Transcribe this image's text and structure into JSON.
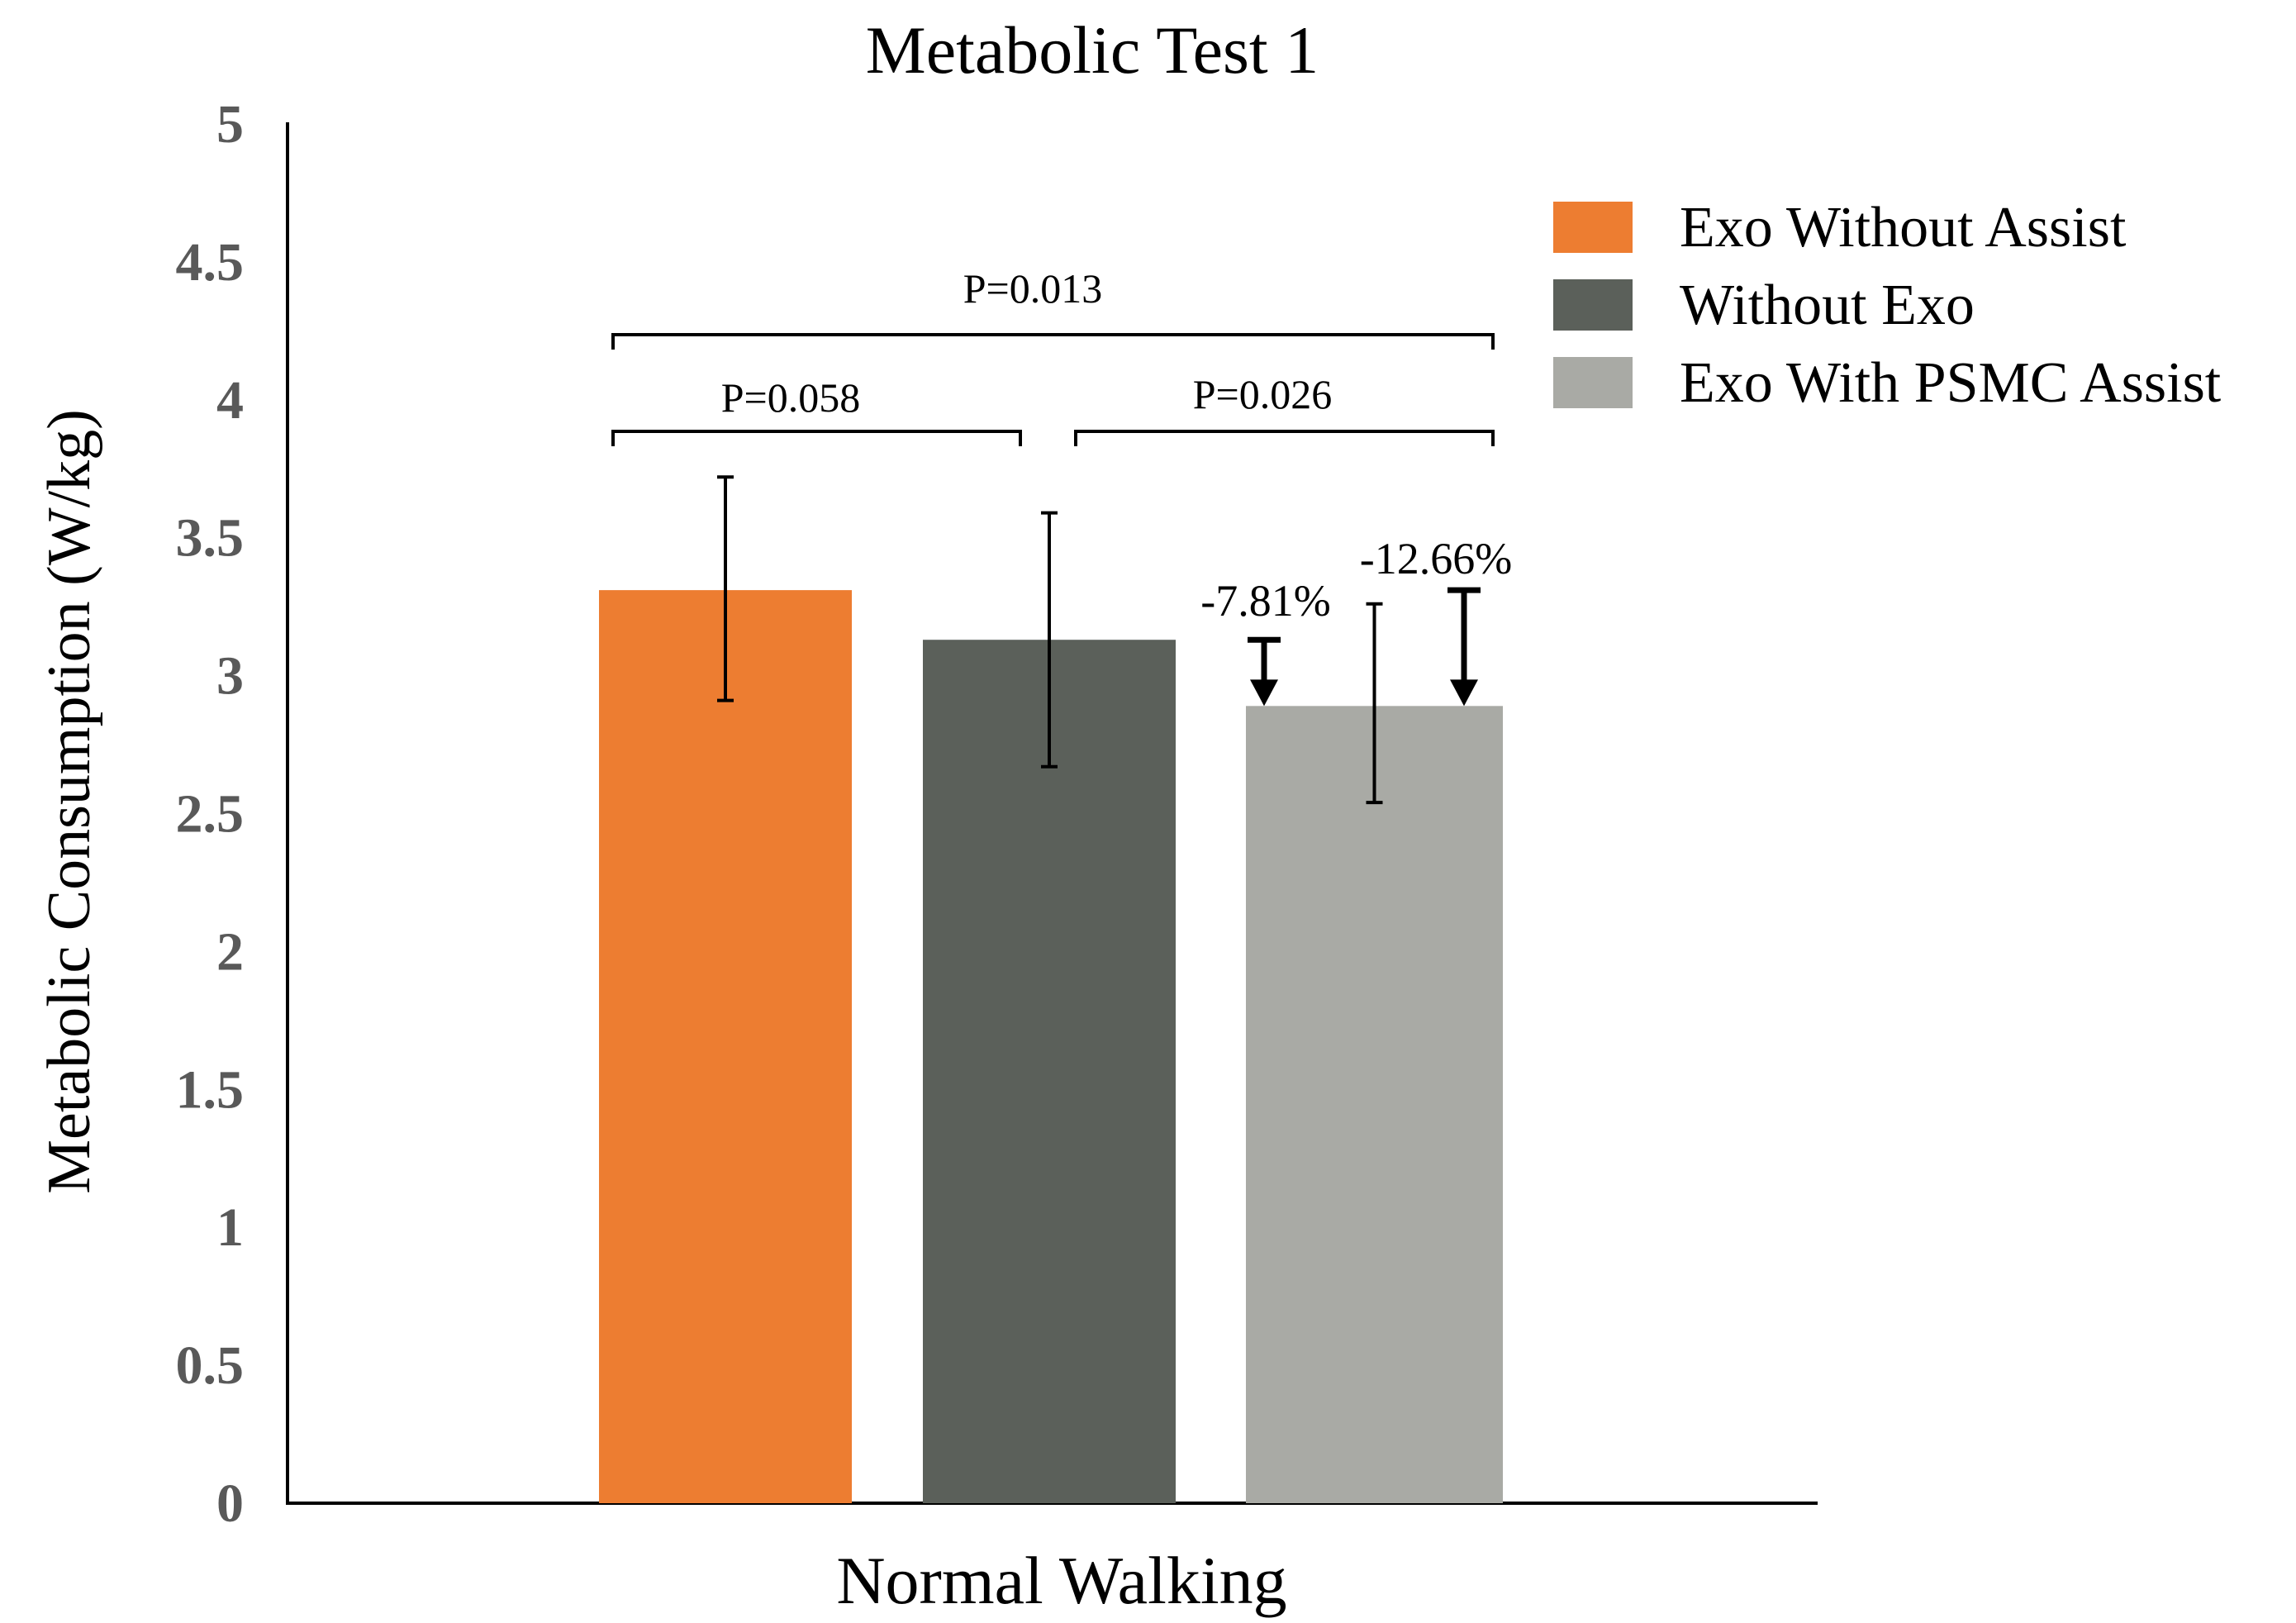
{
  "chart_data": {
    "type": "bar",
    "title": "Metabolic Test 1",
    "xlabel": "Normal Walking",
    "ylabel": "Metabolic Consumption (W/kg)",
    "ylim": [
      0,
      5
    ],
    "yticks": [
      "0",
      "0.5",
      "1",
      "1.5",
      "2",
      "2.5",
      "3",
      "3.5",
      "4",
      "4.5",
      "5"
    ],
    "categories": [
      "Normal Walking"
    ],
    "grid": false,
    "legend_position": "top-right",
    "series": [
      {
        "name": "Exo Without Assist",
        "value": 3.31,
        "error_low": 2.91,
        "error_high": 3.72,
        "color": "#ED7D31"
      },
      {
        "name": "Without Exo",
        "value": 3.13,
        "error_low": 2.67,
        "error_high": 3.59,
        "color": "#5B605A"
      },
      {
        "name": "Exo With PSMC Assist",
        "value": 2.89,
        "error_low": 2.54,
        "error_high": 3.26,
        "color": "#A9AAA5"
      }
    ],
    "significance": [
      {
        "label": "P=0.058",
        "from": 0,
        "to": 1
      },
      {
        "label": "P=0.026",
        "from": 1,
        "to": 2
      },
      {
        "label": "P=0.013",
        "from": 0,
        "to": 2
      }
    ],
    "reductions": [
      {
        "label": "-7.81%",
        "from_value": 3.13,
        "to_value": 2.89
      },
      {
        "label": "-12.66%",
        "from_value": 3.31,
        "to_value": 2.89
      }
    ]
  }
}
